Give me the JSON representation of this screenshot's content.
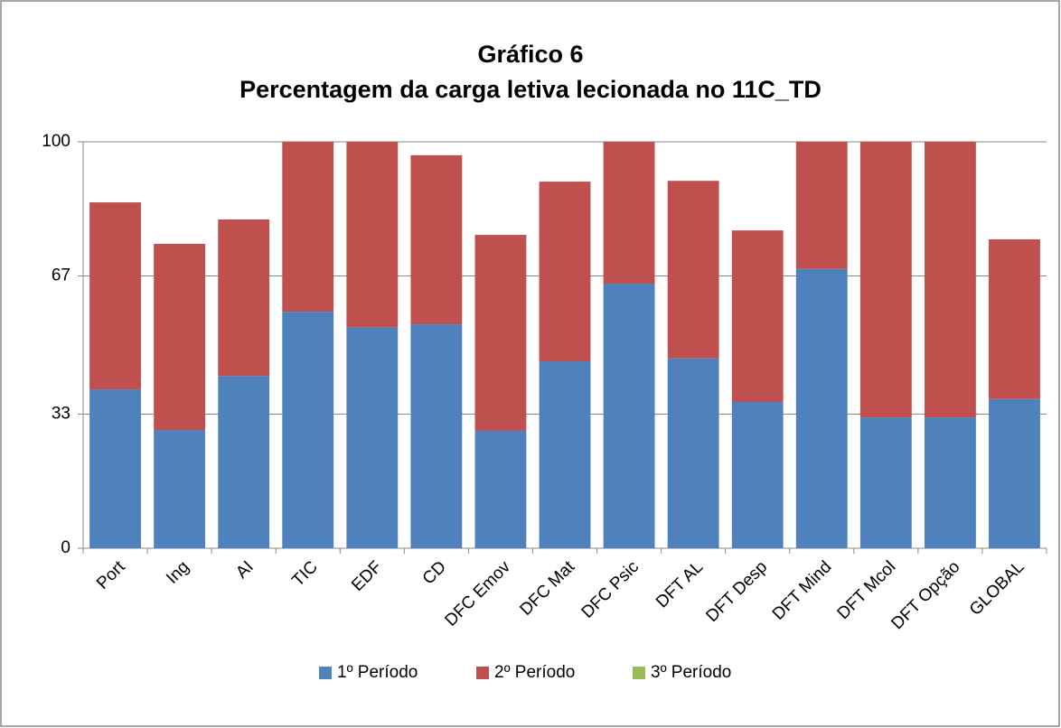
{
  "chart_data": {
    "type": "stacked_bar",
    "title": "Gráfico 6",
    "subtitle": "Percentagem da carga letiva lecionada no 11C_TD",
    "categories": [
      "Port",
      "Ing",
      "AI",
      "TIC",
      "EDF",
      "CD",
      "DFC Emov",
      "DFC Mat",
      "DFC Psic",
      "DFT AL",
      "DFT Desp",
      "DFT Mind",
      "DFT Mcol",
      "DFT Opção",
      "GLOBAL"
    ],
    "series": [
      {
        "name": "1º Período",
        "color": "#4f81bd",
        "values": [
          39.1,
          29.1,
          42.4,
          58.2,
          54.4,
          55.1,
          28.9,
          46.0,
          65.1,
          46.7,
          36.0,
          68.7,
          32.2,
          32.2,
          36.7
        ]
      },
      {
        "name": "2º Período",
        "color": "#c0504d",
        "values": [
          46.0,
          45.8,
          38.5,
          41.8,
          45.6,
          41.6,
          48.2,
          44.2,
          34.9,
          43.7,
          42.2,
          31.3,
          67.8,
          67.8,
          39.3
        ]
      },
      {
        "name": "3º Período",
        "color": "#9bbb59",
        "values": [
          0,
          0,
          0,
          0,
          0,
          0,
          0,
          0,
          0,
          0,
          0,
          0,
          0,
          0,
          0
        ]
      }
    ],
    "ylim": [
      0,
      100
    ],
    "yticks": [
      0,
      33,
      67,
      100
    ],
    "grid": true,
    "legend": "bottom"
  }
}
